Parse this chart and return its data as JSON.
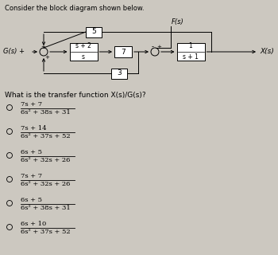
{
  "title": "Consider the block diagram shown below.",
  "question": "What is the transfer function X(s)/G(s)?",
  "bg_color": "#ccc8c0",
  "block_color": "#ffffff",
  "block_edge": "#000000",
  "text_color": "#000000",
  "options": [
    {
      "num": "7s + 7",
      "den": "6s² + 38s + 31"
    },
    {
      "num": "7s + 14",
      "den": "6s² + 37s + 52"
    },
    {
      "num": "6s + 5",
      "den": "6s² + 32s + 26"
    },
    {
      "num": "7s + 7",
      "den": "6s² + 32s + 26"
    },
    {
      "num": "6s + 5",
      "den": "6s² + 38s + 31"
    },
    {
      "num": "6s + 10",
      "den": "6s² + 37s + 52"
    }
  ],
  "diagram": {
    "block5": "5",
    "block_s2_num": "s + 2",
    "block_s2_den": "s",
    "block7": "7",
    "block_tf_num": "1",
    "block_tf_den": "s + 1",
    "block3": "3"
  }
}
